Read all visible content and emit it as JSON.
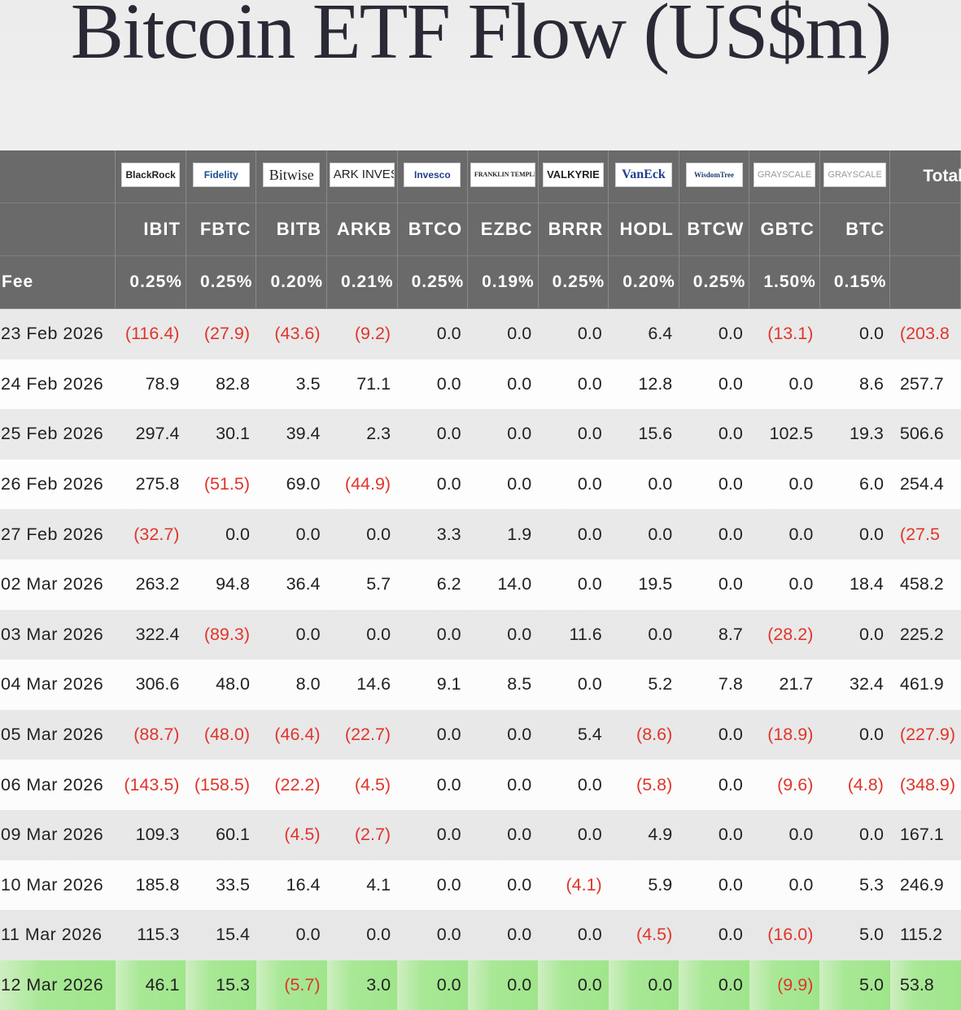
{
  "title": "Bitcoin ETF Flow (US$m)",
  "header": {
    "issuers": [
      "BlackRock",
      "Fidelity",
      "Bitwise",
      "ARK INVEST",
      "Invesco",
      "FRANKLIN TEMPLETON",
      "VALKYRIE",
      "VanEck",
      "WisdomTree",
      "GRAYSCALE",
      "GRAYSCALE"
    ],
    "total_label": "Total",
    "tickers": [
      "IBIT",
      "FBTC",
      "BITB",
      "ARKB",
      "BTCO",
      "EZBC",
      "BRRR",
      "HODL",
      "BTCW",
      "GBTC",
      "BTC"
    ],
    "fee_label": "Fee",
    "fees": [
      "0.25%",
      "0.25%",
      "0.20%",
      "0.21%",
      "0.25%",
      "0.19%",
      "0.25%",
      "0.20%",
      "0.25%",
      "1.50%",
      "0.15%"
    ]
  },
  "rows": [
    {
      "date": "23 Feb 2026",
      "values": [
        "(116.4)",
        "(27.9)",
        "(43.6)",
        "(9.2)",
        "0.0",
        "0.0",
        "0.0",
        "6.4",
        "0.0",
        "(13.1)",
        "0.0"
      ],
      "total": "(203.8"
    },
    {
      "date": "24 Feb 2026",
      "values": [
        "78.9",
        "82.8",
        "3.5",
        "71.1",
        "0.0",
        "0.0",
        "0.0",
        "12.8",
        "0.0",
        "0.0",
        "8.6"
      ],
      "total": "257.7"
    },
    {
      "date": "25 Feb 2026",
      "values": [
        "297.4",
        "30.1",
        "39.4",
        "2.3",
        "0.0",
        "0.0",
        "0.0",
        "15.6",
        "0.0",
        "102.5",
        "19.3"
      ],
      "total": "506.6"
    },
    {
      "date": "26 Feb 2026",
      "values": [
        "275.8",
        "(51.5)",
        "69.0",
        "(44.9)",
        "0.0",
        "0.0",
        "0.0",
        "0.0",
        "0.0",
        "0.0",
        "6.0"
      ],
      "total": "254.4"
    },
    {
      "date": "27 Feb 2026",
      "values": [
        "(32.7)",
        "0.0",
        "0.0",
        "0.0",
        "3.3",
        "1.9",
        "0.0",
        "0.0",
        "0.0",
        "0.0",
        "0.0"
      ],
      "total": "(27.5"
    },
    {
      "date": "02 Mar 2026",
      "values": [
        "263.2",
        "94.8",
        "36.4",
        "5.7",
        "6.2",
        "14.0",
        "0.0",
        "19.5",
        "0.0",
        "0.0",
        "18.4"
      ],
      "total": "458.2"
    },
    {
      "date": "03 Mar 2026",
      "values": [
        "322.4",
        "(89.3)",
        "0.0",
        "0.0",
        "0.0",
        "0.0",
        "11.6",
        "0.0",
        "8.7",
        "(28.2)",
        "0.0"
      ],
      "total": "225.2"
    },
    {
      "date": "04 Mar 2026",
      "values": [
        "306.6",
        "48.0",
        "8.0",
        "14.6",
        "9.1",
        "8.5",
        "0.0",
        "5.2",
        "7.8",
        "21.7",
        "32.4"
      ],
      "total": "461.9"
    },
    {
      "date": "05 Mar 2026",
      "values": [
        "(88.7)",
        "(48.0)",
        "(46.4)",
        "(22.7)",
        "0.0",
        "0.0",
        "5.4",
        "(8.6)",
        "0.0",
        "(18.9)",
        "0.0"
      ],
      "total": "(227.9)"
    },
    {
      "date": "06 Mar 2026",
      "values": [
        "(143.5)",
        "(158.5)",
        "(22.2)",
        "(4.5)",
        "0.0",
        "0.0",
        "0.0",
        "(5.8)",
        "0.0",
        "(9.6)",
        "(4.8)"
      ],
      "total": "(348.9)"
    },
    {
      "date": "09 Mar 2026",
      "values": [
        "109.3",
        "60.1",
        "(4.5)",
        "(2.7)",
        "0.0",
        "0.0",
        "0.0",
        "4.9",
        "0.0",
        "0.0",
        "0.0"
      ],
      "total": "167.1"
    },
    {
      "date": "10 Mar 2026",
      "values": [
        "185.8",
        "33.5",
        "16.4",
        "4.1",
        "0.0",
        "0.0",
        "(4.1)",
        "5.9",
        "0.0",
        "0.0",
        "5.3"
      ],
      "total": "246.9"
    },
    {
      "date": "11 Mar 2026",
      "values": [
        "115.3",
        "15.4",
        "0.0",
        "0.0",
        "0.0",
        "0.0",
        "0.0",
        "(4.5)",
        "0.0",
        "(16.0)",
        "5.0"
      ],
      "total": "115.2"
    },
    {
      "date": "12 Mar 2026",
      "values": [
        "46.1",
        "15.3",
        "(5.7)",
        "3.0",
        "0.0",
        "0.0",
        "0.0",
        "0.0",
        "0.0",
        "(9.9)",
        "5.0"
      ],
      "total": "53.8",
      "highlight": true
    }
  ],
  "colors": {
    "negative": "#e0352b",
    "header_bg": "#6a6a6a",
    "highlight": "#9fe58b"
  }
}
